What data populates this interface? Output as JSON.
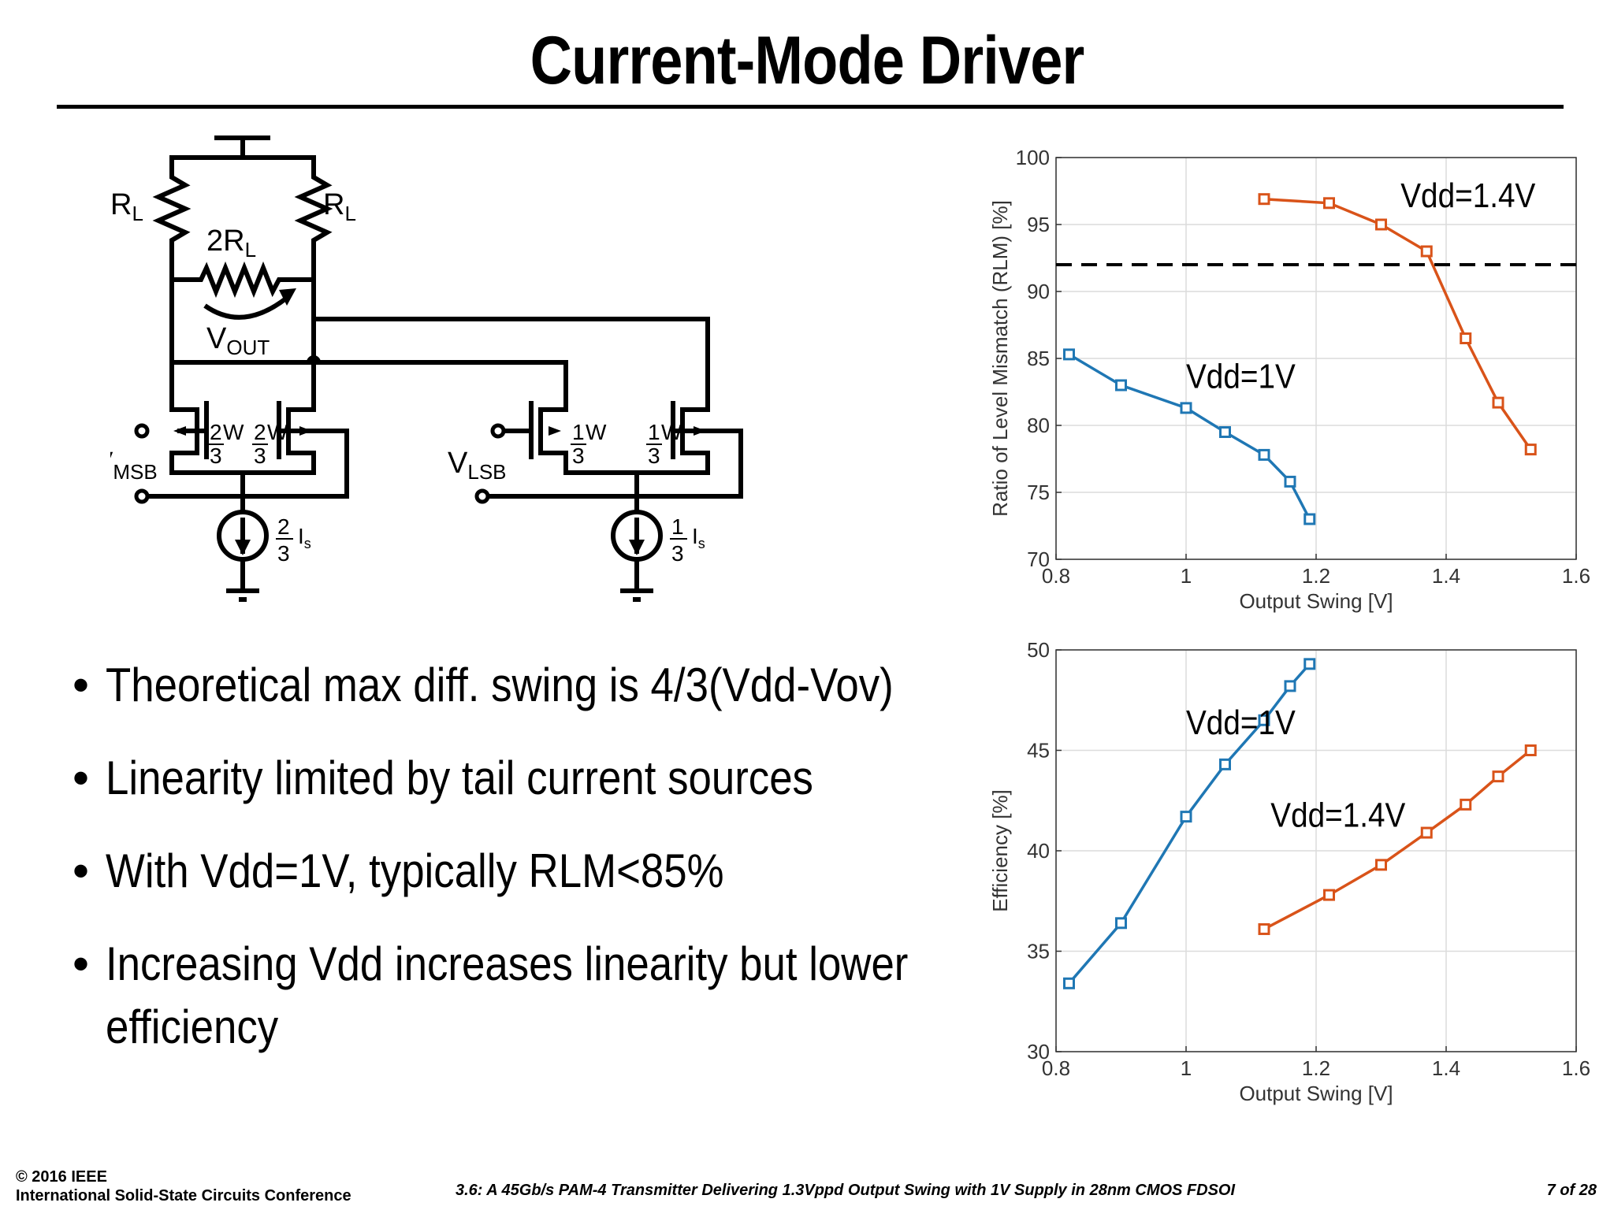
{
  "slide": {
    "title": "Current-Mode Driver",
    "bullets": [
      "Theoretical max diff. swing is 4/3(Vdd-Vov)",
      "Linearity limited by tail current sources",
      "With Vdd=1V, typically RLM<85%",
      "Increasing Vdd increases linearity but lower efficiency"
    ],
    "bullet_glyph": "•"
  },
  "circuit": {
    "labels": {
      "rl_left": "R",
      "rl_left_sub": "L",
      "rl_right": "R",
      "rl_right_sub": "L",
      "r2l": "2R",
      "r2l_sub": "L",
      "vout": "V",
      "vout_sub": "OUT",
      "vmsb": "V",
      "vmsb_sub": "MSB",
      "vlsb": "V",
      "vlsb_sub": "LSB",
      "w_num_msb": "2",
      "w_num_lsb": "1",
      "w_unit": "W",
      "frac_den": "3",
      "is_msb_num": "2",
      "is_lsb_num": "1",
      "is_unit": "I",
      "is_sub": "s"
    }
  },
  "chart_data": [
    {
      "type": "line",
      "xlabel": "Output Swing [V]",
      "ylabel": "Ratio of Level Mismatch (RLM) [%]",
      "xlim": [
        0.8,
        1.6
      ],
      "ylim": [
        70,
        100
      ],
      "xticks": [
        0.8,
        1,
        1.2,
        1.4,
        1.6
      ],
      "yticks": [
        70,
        75,
        80,
        85,
        90,
        95,
        100
      ],
      "grid": true,
      "reference_line": {
        "y": 92,
        "style": "dashed"
      },
      "series": [
        {
          "name": "Vdd=1V",
          "color": "#1f77b4",
          "x": [
            0.82,
            0.9,
            1.0,
            1.06,
            1.12,
            1.16,
            1.19
          ],
          "y": [
            85.3,
            83.0,
            81.3,
            79.5,
            77.8,
            75.8,
            73.0
          ]
        },
        {
          "name": "Vdd=1.4V",
          "color": "#d95319",
          "x": [
            1.12,
            1.22,
            1.3,
            1.37,
            1.43,
            1.48,
            1.53
          ],
          "y": [
            96.9,
            96.6,
            95.0,
            93.0,
            86.5,
            81.7,
            78.2
          ]
        }
      ]
    },
    {
      "type": "line",
      "xlabel": "Output Swing [V]",
      "ylabel": "Efficiency [%]",
      "xlim": [
        0.8,
        1.6
      ],
      "ylim": [
        30,
        50
      ],
      "xticks": [
        0.8,
        1,
        1.2,
        1.4,
        1.6
      ],
      "yticks": [
        30,
        35,
        40,
        45,
        50
      ],
      "grid": true,
      "series": [
        {
          "name": "Vdd=1V",
          "color": "#1f77b4",
          "x": [
            0.82,
            0.9,
            1.0,
            1.06,
            1.12,
            1.16,
            1.19
          ],
          "y": [
            33.4,
            36.4,
            41.7,
            44.3,
            46.5,
            48.2,
            49.3
          ]
        },
        {
          "name": "Vdd=1.4V",
          "color": "#d95319",
          "x": [
            1.12,
            1.22,
            1.3,
            1.37,
            1.43,
            1.48,
            1.53
          ],
          "y": [
            36.1,
            37.8,
            39.3,
            40.9,
            42.3,
            43.7,
            45.0
          ]
        }
      ]
    }
  ],
  "footer": {
    "copyright": "© 2016 IEEE",
    "conference": "International Solid-State Circuits Conference",
    "paper": "3.6: A 45Gb/s PAM-4 Transmitter Delivering 1.3Vppd Output Swing with 1V Supply in 28nm CMOS FDSOI",
    "page": "7 of 28"
  }
}
